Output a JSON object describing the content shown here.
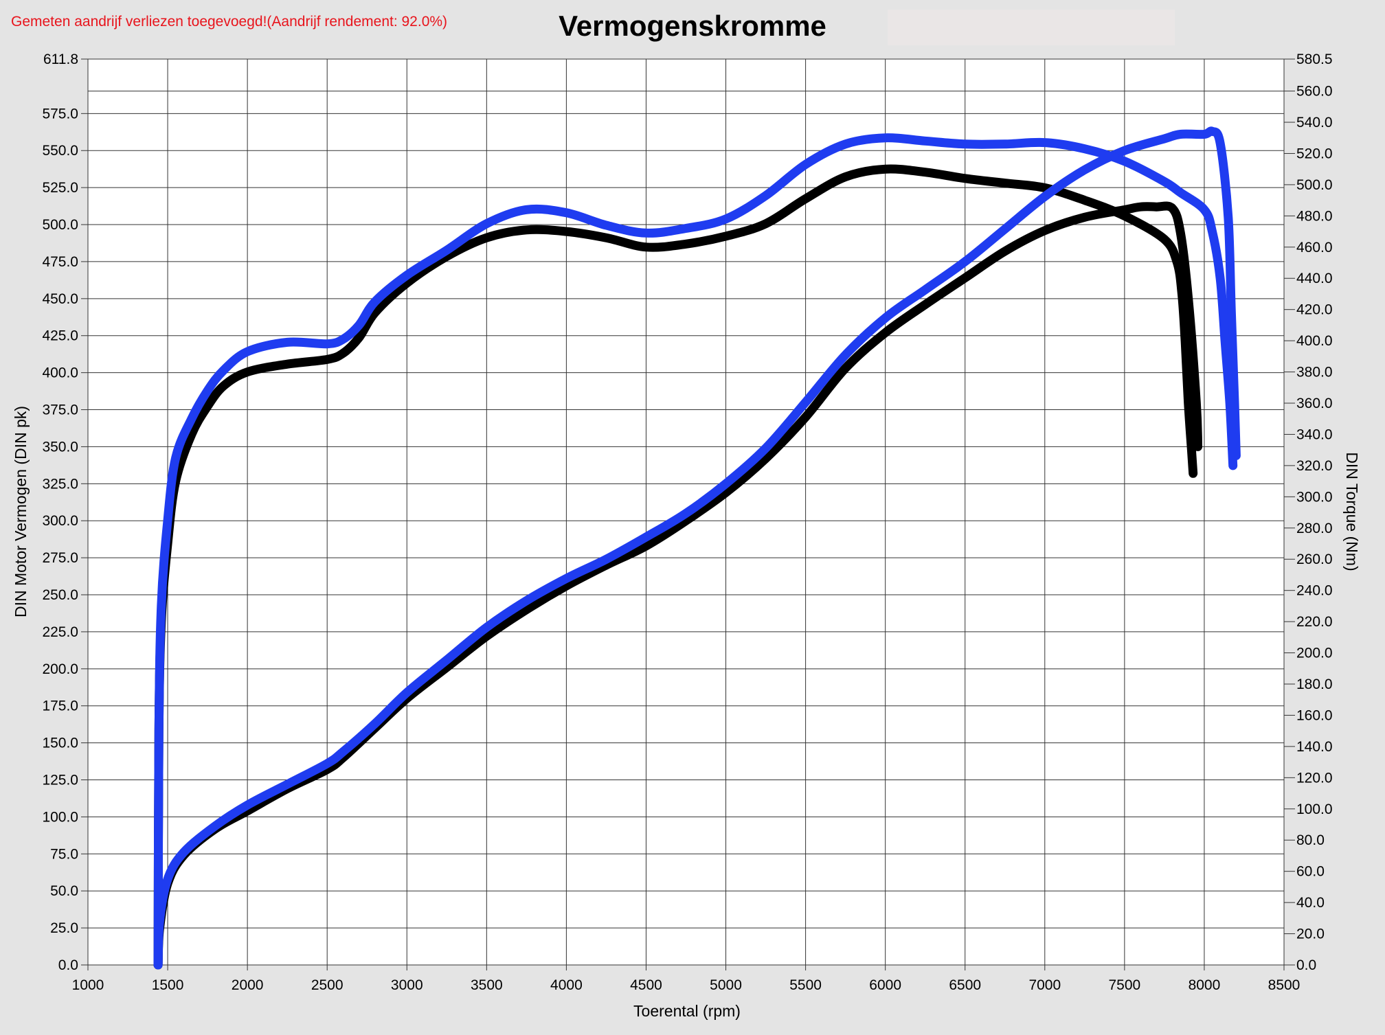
{
  "notice": "Gemeten aandrijf verliezen toegevoegd!(Aandrijf rendement: 92.0%)",
  "colors": {
    "notice": "#e8141c",
    "series_black": "#000000",
    "series_blue": "#1f3cf0",
    "background": "#e4e4e4",
    "plot_bg": "#ffffff"
  },
  "chart_data": {
    "type": "line",
    "title": "Vermogenskromme",
    "xlabel": "Toerental (rpm)",
    "ylabel_left": "DIN Motor Vermogen (DIN pk)",
    "ylabel_right": "DIN Torque (Nm)",
    "xlim": [
      1000,
      8500
    ],
    "ylim_left": [
      0,
      611.8
    ],
    "ylim_right": [
      0,
      580.5
    ],
    "grid": true,
    "x_ticks": [
      "1000",
      "1500",
      "2000",
      "2500",
      "3000",
      "3500",
      "4000",
      "4500",
      "5000",
      "5500",
      "6000",
      "6500",
      "7000",
      "7500",
      "8000",
      "8500"
    ],
    "y_left_ticks": [
      "0.0",
      "25.0",
      "50.0",
      "75.0",
      "100.0",
      "125.0",
      "150.0",
      "175.0",
      "200.0",
      "225.0",
      "250.0",
      "275.0",
      "300.0",
      "325.0",
      "350.0",
      "375.0",
      "400.0",
      "425.0",
      "450.0",
      "475.0",
      "500.0",
      "525.0",
      "550.0",
      "575.0",
      "611.8"
    ],
    "y_right_ticks": [
      "0.0",
      "20.0",
      "40.0",
      "60.0",
      "80.0",
      "100.0",
      "120.0",
      "140.0",
      "160.0",
      "180.0",
      "200.0",
      "220.0",
      "240.0",
      "260.0",
      "280.0",
      "300.0",
      "320.0",
      "340.0",
      "360.0",
      "380.0",
      "400.0",
      "420.0",
      "440.0",
      "460.0",
      "480.0",
      "500.0",
      "520.0",
      "540.0",
      "560.0",
      "580.5"
    ],
    "series": [
      {
        "color": "black",
        "axis": "left",
        "kind": "power",
        "points": [
          [
            1440,
            0
          ],
          [
            1450,
            25
          ],
          [
            1500,
            55
          ],
          [
            1600,
            74
          ],
          [
            1800,
            92
          ],
          [
            2000,
            104
          ],
          [
            2250,
            119
          ],
          [
            2500,
            132
          ],
          [
            2600,
            140
          ],
          [
            2800,
            160
          ],
          [
            3000,
            180
          ],
          [
            3250,
            201
          ],
          [
            3500,
            222
          ],
          [
            3750,
            240
          ],
          [
            4000,
            256
          ],
          [
            4250,
            270
          ],
          [
            4500,
            283
          ],
          [
            4750,
            300
          ],
          [
            5000,
            319
          ],
          [
            5250,
            342
          ],
          [
            5500,
            370
          ],
          [
            5750,
            403
          ],
          [
            6000,
            427
          ],
          [
            6250,
            446
          ],
          [
            6500,
            464
          ],
          [
            6750,
            482
          ],
          [
            7000,
            496
          ],
          [
            7250,
            505
          ],
          [
            7500,
            510
          ],
          [
            7600,
            512
          ],
          [
            7700,
            512
          ],
          [
            7800,
            511
          ],
          [
            7850,
            495
          ],
          [
            7900,
            450
          ],
          [
            7950,
            380
          ],
          [
            7960,
            350
          ]
        ]
      },
      {
        "color": "black",
        "axis": "right",
        "kind": "torque",
        "points": [
          [
            1440,
            0
          ],
          [
            1445,
            150
          ],
          [
            1460,
            220
          ],
          [
            1500,
            270
          ],
          [
            1550,
            310
          ],
          [
            1650,
            340
          ],
          [
            1750,
            358
          ],
          [
            1850,
            371
          ],
          [
            2000,
            380
          ],
          [
            2250,
            385
          ],
          [
            2500,
            388
          ],
          [
            2600,
            392
          ],
          [
            2700,
            402
          ],
          [
            2800,
            418
          ],
          [
            3000,
            437
          ],
          [
            3250,
            454
          ],
          [
            3500,
            466
          ],
          [
            3750,
            471
          ],
          [
            4000,
            470
          ],
          [
            4250,
            466
          ],
          [
            4500,
            460
          ],
          [
            4750,
            462
          ],
          [
            5000,
            467
          ],
          [
            5250,
            475
          ],
          [
            5500,
            491
          ],
          [
            5750,
            505
          ],
          [
            6000,
            510
          ],
          [
            6250,
            508
          ],
          [
            6500,
            504
          ],
          [
            6750,
            501
          ],
          [
            7000,
            498
          ],
          [
            7250,
            490
          ],
          [
            7500,
            480
          ],
          [
            7750,
            465
          ],
          [
            7830,
            450
          ],
          [
            7860,
            430
          ],
          [
            7880,
            400
          ],
          [
            7900,
            360
          ],
          [
            7920,
            330
          ],
          [
            7930,
            315
          ]
        ]
      },
      {
        "color": "blue",
        "axis": "left",
        "kind": "power",
        "points": [
          [
            1440,
            0
          ],
          [
            1450,
            30
          ],
          [
            1500,
            58
          ],
          [
            1600,
            76
          ],
          [
            1800,
            94
          ],
          [
            2000,
            108
          ],
          [
            2250,
            122
          ],
          [
            2500,
            136
          ],
          [
            2600,
            144
          ],
          [
            2800,
            163
          ],
          [
            3000,
            184
          ],
          [
            3250,
            206
          ],
          [
            3500,
            228
          ],
          [
            3750,
            246
          ],
          [
            4000,
            261
          ],
          [
            4250,
            274
          ],
          [
            4500,
            289
          ],
          [
            4750,
            305
          ],
          [
            5000,
            325
          ],
          [
            5250,
            349
          ],
          [
            5500,
            380
          ],
          [
            5750,
            412
          ],
          [
            6000,
            437
          ],
          [
            6250,
            456
          ],
          [
            6500,
            475
          ],
          [
            6750,
            497
          ],
          [
            7000,
            519
          ],
          [
            7250,
            537
          ],
          [
            7500,
            550
          ],
          [
            7750,
            558
          ],
          [
            7850,
            561
          ],
          [
            8000,
            561
          ],
          [
            8050,
            563
          ],
          [
            8100,
            555
          ],
          [
            8150,
            505
          ],
          [
            8170,
            440
          ],
          [
            8190,
            380
          ],
          [
            8200,
            344
          ]
        ]
      },
      {
        "color": "blue",
        "axis": "right",
        "kind": "torque",
        "points": [
          [
            1440,
            0
          ],
          [
            1445,
            150
          ],
          [
            1460,
            230
          ],
          [
            1500,
            285
          ],
          [
            1550,
            325
          ],
          [
            1650,
            350
          ],
          [
            1750,
            368
          ],
          [
            1850,
            381
          ],
          [
            2000,
            393
          ],
          [
            2250,
            399
          ],
          [
            2500,
            398
          ],
          [
            2600,
            401
          ],
          [
            2700,
            410
          ],
          [
            2800,
            425
          ],
          [
            3000,
            442
          ],
          [
            3250,
            458
          ],
          [
            3500,
            475
          ],
          [
            3750,
            484
          ],
          [
            4000,
            482
          ],
          [
            4250,
            474
          ],
          [
            4500,
            469
          ],
          [
            4750,
            472
          ],
          [
            5000,
            478
          ],
          [
            5250,
            493
          ],
          [
            5500,
            513
          ],
          [
            5750,
            526
          ],
          [
            6000,
            530
          ],
          [
            6250,
            528
          ],
          [
            6500,
            526
          ],
          [
            6750,
            526
          ],
          [
            7000,
            527
          ],
          [
            7250,
            523
          ],
          [
            7500,
            515
          ],
          [
            7750,
            502
          ],
          [
            7850,
            495
          ],
          [
            8000,
            484
          ],
          [
            8050,
            470
          ],
          [
            8100,
            440
          ],
          [
            8130,
            400
          ],
          [
            8160,
            360
          ],
          [
            8180,
            320
          ]
        ]
      }
    ]
  }
}
